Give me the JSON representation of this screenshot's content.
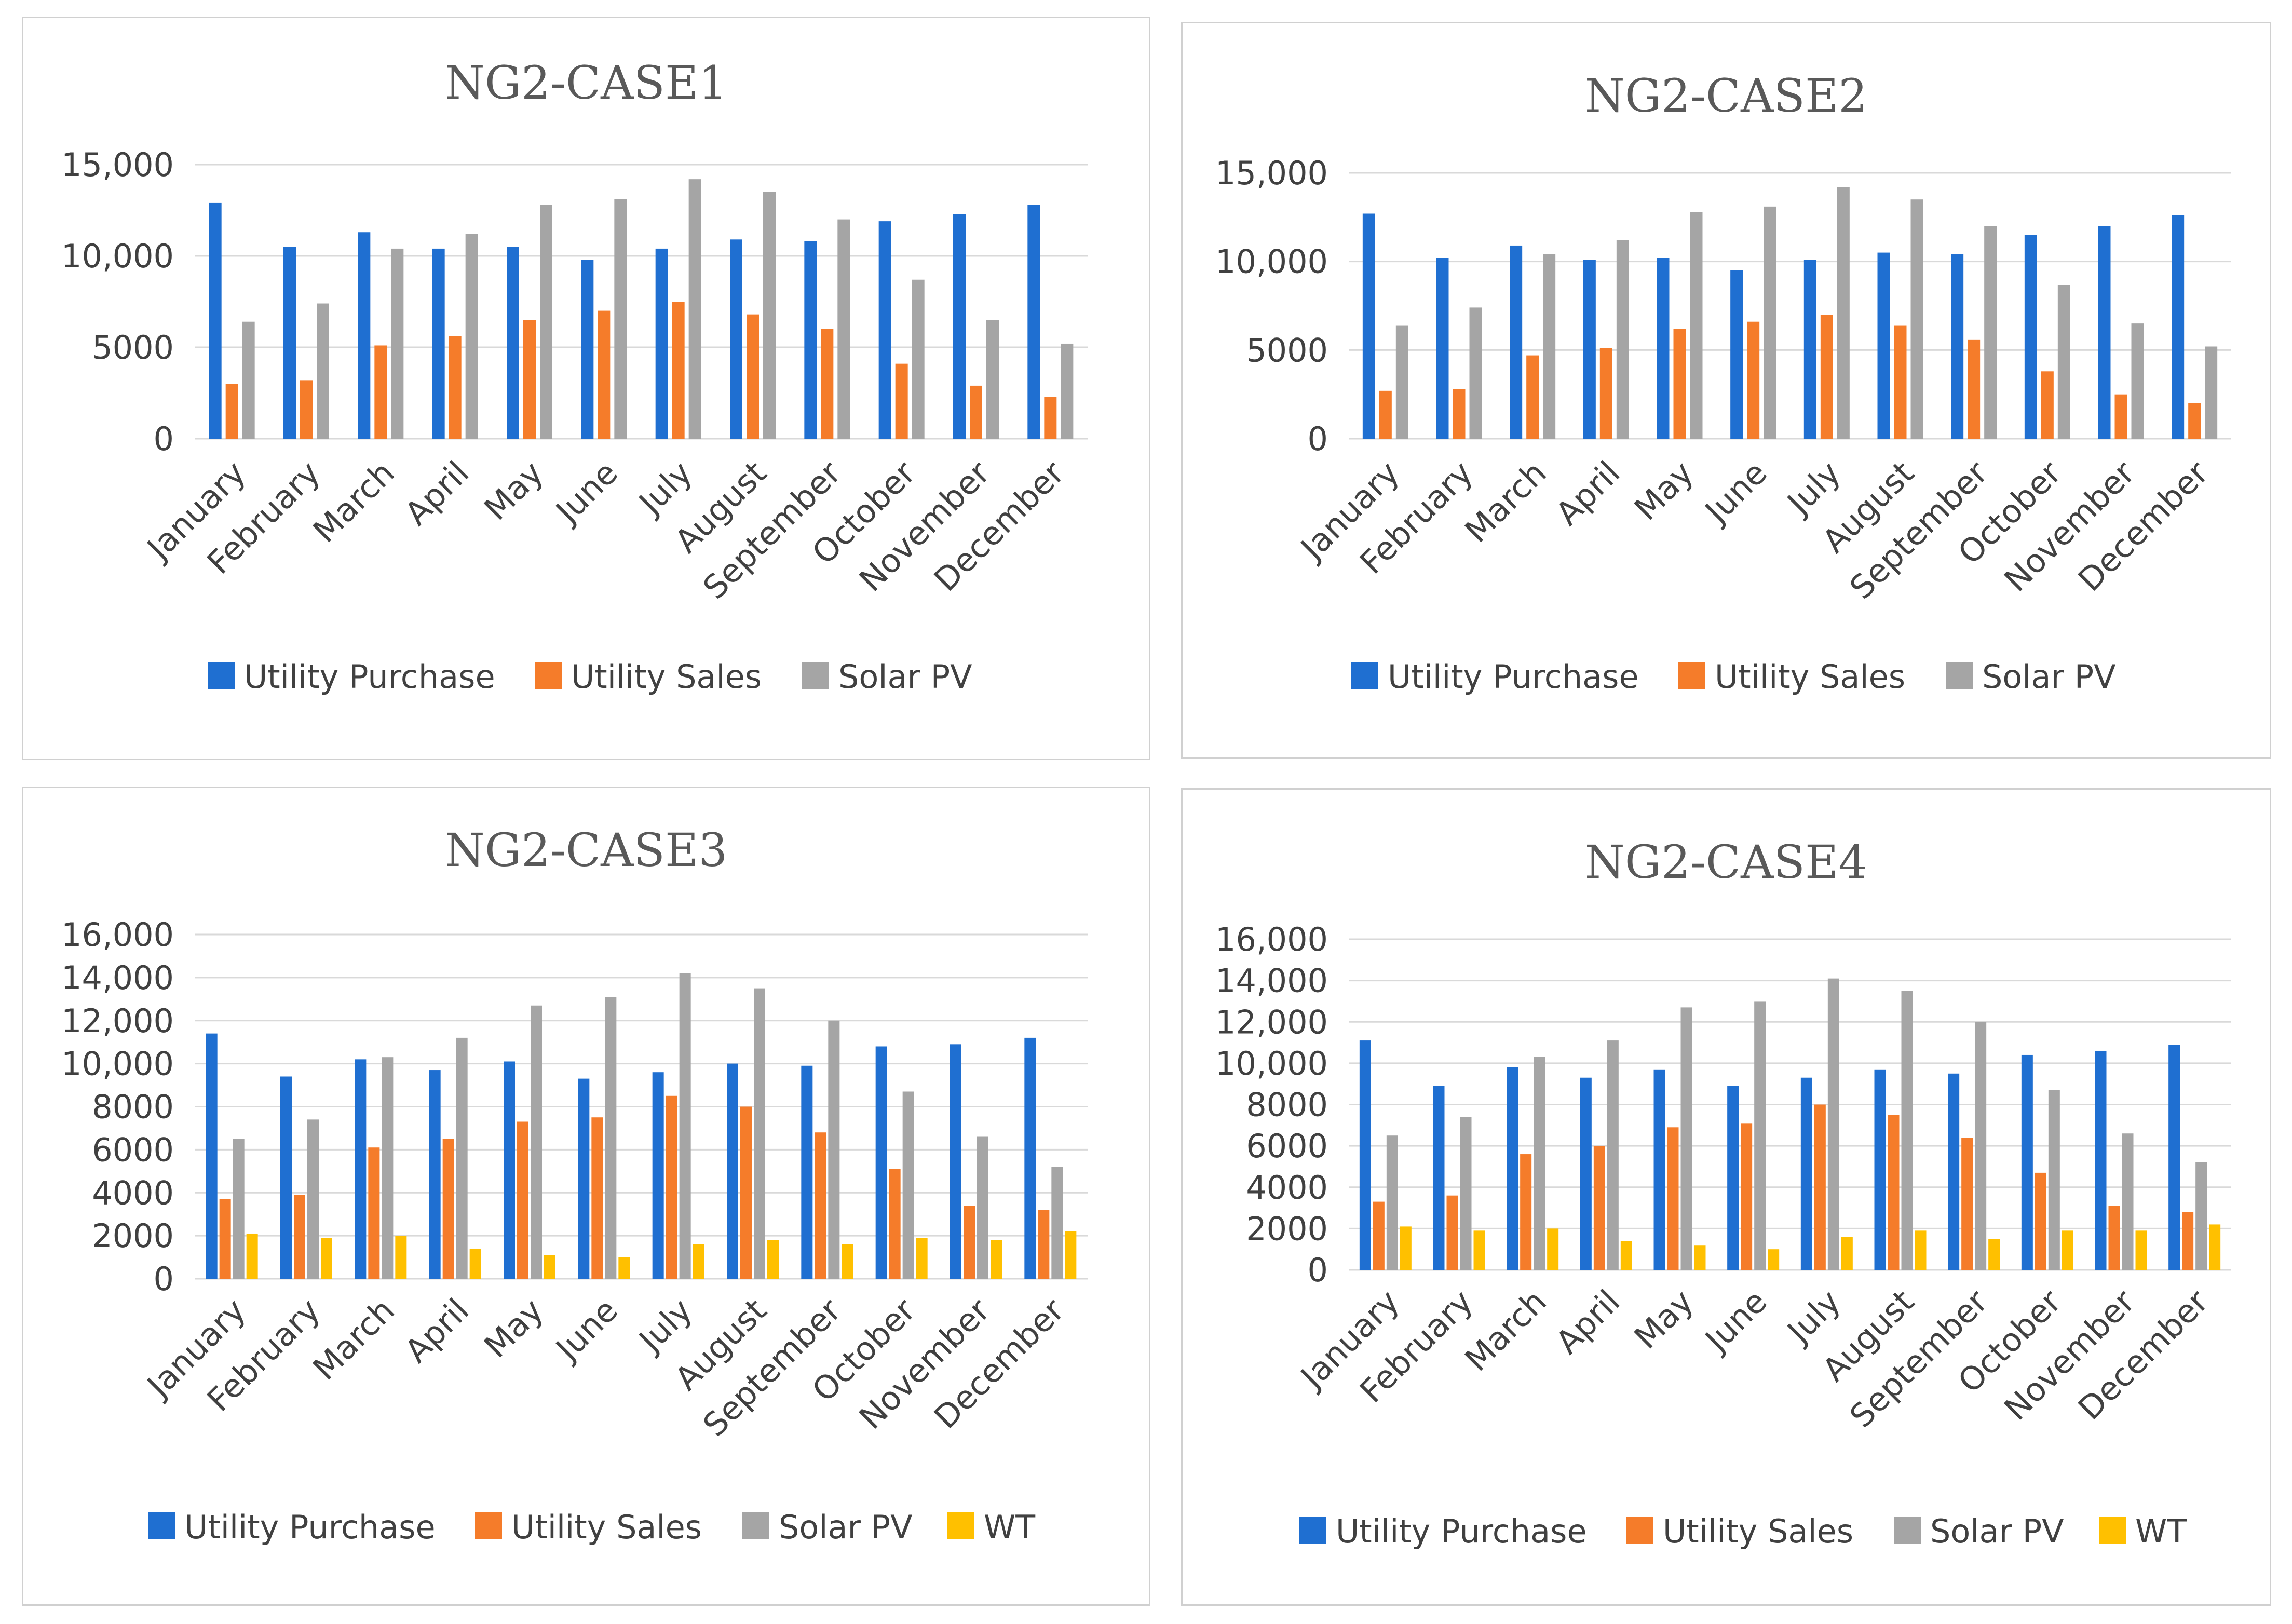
{
  "colors": {
    "Utility Purchase": "#1f6fd1",
    "Utility Sales": "#f57c2a",
    "Solar PV": "#a5a5a5",
    "WT": "#ffc000"
  },
  "chart_data": [
    {
      "type": "bar",
      "title": "NG2-CASE1",
      "categories": [
        "January",
        "February",
        "March",
        "April",
        "May",
        "June",
        "July",
        "August",
        "September",
        "October",
        "November",
        "December"
      ],
      "ylim": [
        0,
        15000
      ],
      "yticks": [
        0,
        5000,
        10000,
        15000
      ],
      "ytick_labels": [
        "0",
        "5000",
        "10,000",
        "15,000"
      ],
      "series": [
        {
          "name": "Utility Purchase",
          "values": [
            12900,
            10500,
            11300,
            10400,
            10500,
            9800,
            10400,
            10900,
            10800,
            11900,
            12300,
            12800
          ]
        },
        {
          "name": "Utility Sales",
          "values": [
            3000,
            3200,
            5100,
            5600,
            6500,
            7000,
            7500,
            6800,
            6000,
            4100,
            2900,
            2300
          ]
        },
        {
          "name": "Solar PV",
          "values": [
            6400,
            7400,
            10400,
            11200,
            12800,
            13100,
            14200,
            13500,
            12000,
            8700,
            6500,
            5200
          ]
        }
      ],
      "legend": "bottom"
    },
    {
      "type": "bar",
      "title": "NG2-CASE2",
      "categories": [
        "January",
        "February",
        "March",
        "April",
        "May",
        "June",
        "July",
        "August",
        "September",
        "October",
        "November",
        "December"
      ],
      "ylim": [
        0,
        15000
      ],
      "yticks": [
        0,
        5000,
        10000,
        15000
      ],
      "ytick_labels": [
        "0",
        "5000",
        "10,000",
        "15,000"
      ],
      "series": [
        {
          "name": "Utility Purchase",
          "values": [
            12700,
            10200,
            10900,
            10100,
            10200,
            9500,
            10100,
            10500,
            10400,
            11500,
            12000,
            12600
          ]
        },
        {
          "name": "Utility Sales",
          "values": [
            2700,
            2800,
            4700,
            5100,
            6200,
            6600,
            7000,
            6400,
            5600,
            3800,
            2500,
            2000
          ]
        },
        {
          "name": "Solar PV",
          "values": [
            6400,
            7400,
            10400,
            11200,
            12800,
            13100,
            14200,
            13500,
            12000,
            8700,
            6500,
            5200
          ]
        }
      ],
      "legend": "bottom"
    },
    {
      "type": "bar",
      "title": "NG2-CASE3",
      "categories": [
        "January",
        "February",
        "March",
        "April",
        "May",
        "June",
        "July",
        "August",
        "September",
        "October",
        "November",
        "December"
      ],
      "ylim": [
        0,
        16000
      ],
      "yticks": [
        0,
        2000,
        4000,
        6000,
        8000,
        10000,
        12000,
        14000,
        16000
      ],
      "ytick_labels": [
        "0",
        "2000",
        "4000",
        "6000",
        "8000",
        "10,000",
        "12,000",
        "14,000",
        "16,000"
      ],
      "series": [
        {
          "name": "Utility Purchase",
          "values": [
            11400,
            9400,
            10200,
            9700,
            10100,
            9300,
            9600,
            10000,
            9900,
            10800,
            10900,
            11200
          ]
        },
        {
          "name": "Utility Sales",
          "values": [
            3700,
            3900,
            6100,
            6500,
            7300,
            7500,
            8500,
            8000,
            6800,
            5100,
            3400,
            3200
          ]
        },
        {
          "name": "Solar PV",
          "values": [
            6500,
            7400,
            10300,
            11200,
            12700,
            13100,
            14200,
            13500,
            12000,
            8700,
            6600,
            5200
          ]
        },
        {
          "name": "WT",
          "values": [
            2100,
            1900,
            2000,
            1400,
            1100,
            1000,
            1600,
            1800,
            1600,
            1900,
            1800,
            2200
          ]
        }
      ],
      "legend": "bottom"
    },
    {
      "type": "bar",
      "title": "NG2-CASE4",
      "categories": [
        "January",
        "February",
        "March",
        "April",
        "May",
        "June",
        "July",
        "August",
        "September",
        "October",
        "November",
        "December"
      ],
      "ylim": [
        0,
        16000
      ],
      "yticks": [
        0,
        2000,
        4000,
        6000,
        8000,
        10000,
        12000,
        14000,
        16000
      ],
      "ytick_labels": [
        "0",
        "2000",
        "4000",
        "6000",
        "8000",
        "10,000",
        "12,000",
        "14,000",
        "16,000"
      ],
      "series": [
        {
          "name": "Utility Purchase",
          "values": [
            11100,
            8900,
            9800,
            9300,
            9700,
            8900,
            9300,
            9700,
            9500,
            10400,
            10600,
            10900
          ]
        },
        {
          "name": "Utility Sales",
          "values": [
            3300,
            3600,
            5600,
            6000,
            6900,
            7100,
            8000,
            7500,
            6400,
            4700,
            3100,
            2800
          ]
        },
        {
          "name": "Solar PV",
          "values": [
            6500,
            7400,
            10300,
            11100,
            12700,
            13000,
            14100,
            13500,
            12000,
            8700,
            6600,
            5200
          ]
        },
        {
          "name": "WT",
          "values": [
            2100,
            1900,
            2000,
            1400,
            1200,
            1000,
            1600,
            1900,
            1500,
            1900,
            1900,
            2200
          ]
        }
      ],
      "legend": "bottom"
    }
  ]
}
